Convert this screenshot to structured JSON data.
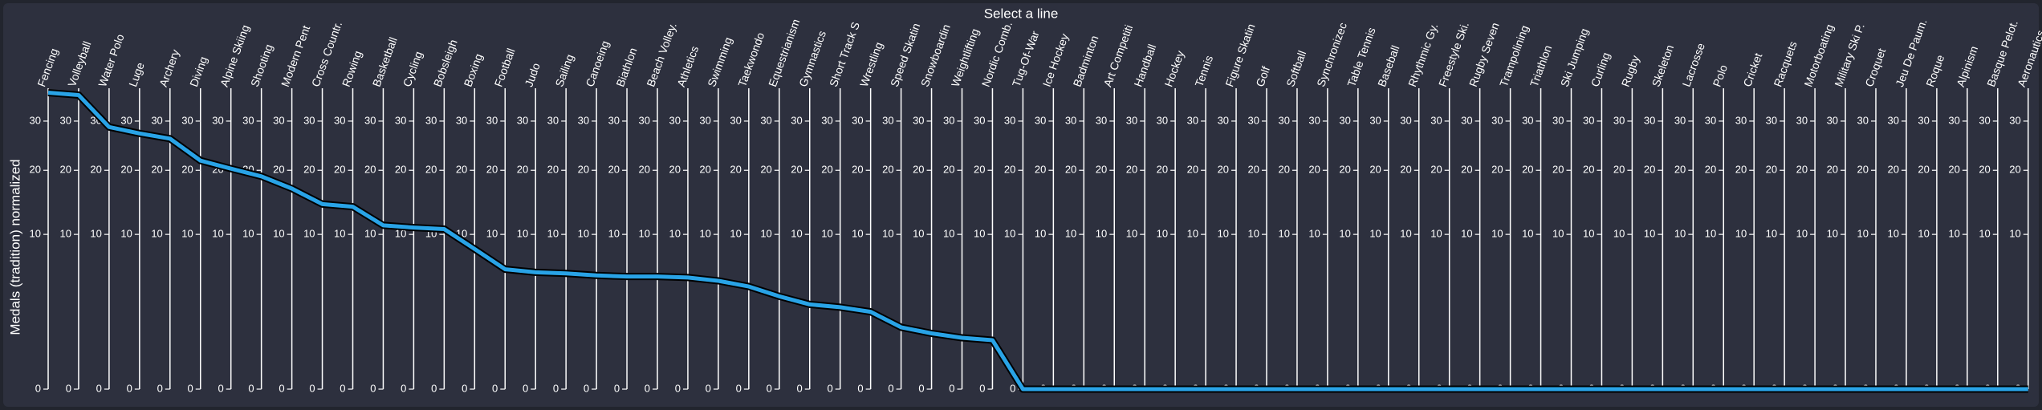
{
  "chart_data": {
    "type": "parallel",
    "title": "Select a line",
    "y_label": "Medals (tradition) normalized",
    "yscale": "sqrt",
    "ylim": [
      0,
      37
    ],
    "yticks": [
      0,
      10,
      20,
      30
    ],
    "color": "#29a3e6",
    "categories": [
      "Fencing",
      "Volleyball",
      "Water Polo",
      "Luge",
      "Archery",
      "Diving",
      "Alpine Skiing",
      "Shooting",
      "Modern Pent",
      "Cross Countr.",
      "Rowing",
      "Basketball",
      "Cycling",
      "Bobsleigh",
      "Boxing",
      "Football",
      "Judo",
      "Sailing",
      "Canoeing",
      "Biathlon",
      "Beach Volley.",
      "Athletics",
      "Swimming",
      "Taekwondo",
      "Equestrianism",
      "Gymnastics",
      "Short Track S",
      "Wrestling",
      "Speed Skatin",
      "Snowboardin",
      "Weightlifting",
      "Nordic Comb.",
      "Tug-Of-War",
      "Ice Hockey",
      "Badminton",
      "Art Competiti",
      "Handball",
      "Hockey",
      "Tennis",
      "Figure Skatin",
      "Golf",
      "Softball",
      "Synchronizec",
      "Table Tennis",
      "Baseball",
      "Rhythmic Gy.",
      "Freestyle Ski.",
      "Rugby Seven",
      "Trampolining",
      "Triathlon",
      "Ski Jumping",
      "Curling",
      "Rugby",
      "Skeleton",
      "Lacrosse",
      "Polo",
      "Cricket",
      "Racquets",
      "Motorboating",
      "Military Ski P.",
      "Croquet",
      "Jeu De Paum.",
      "Roque",
      "Alpinism",
      "Basque Pelot.",
      "Aeronautics"
    ],
    "values": [
      36.7,
      36.1,
      28.7,
      27.3,
      26.2,
      21.8,
      20.3,
      18.9,
      16.8,
      14.3,
      13.9,
      11.2,
      10.9,
      10.7,
      8.2,
      6.0,
      5.7,
      5.6,
      5.4,
      5.3,
      5.3,
      5.2,
      4.9,
      4.4,
      3.6,
      3.0,
      2.8,
      2.5,
      1.6,
      1.3,
      1.1,
      1.0,
      0,
      0,
      0,
      0,
      0,
      0,
      0,
      0,
      0,
      0,
      0,
      0,
      0,
      0,
      0,
      0,
      0,
      0,
      0,
      0,
      0,
      0,
      0,
      0,
      0,
      0,
      0,
      0,
      0,
      0,
      0,
      0,
      0,
      0
    ]
  }
}
